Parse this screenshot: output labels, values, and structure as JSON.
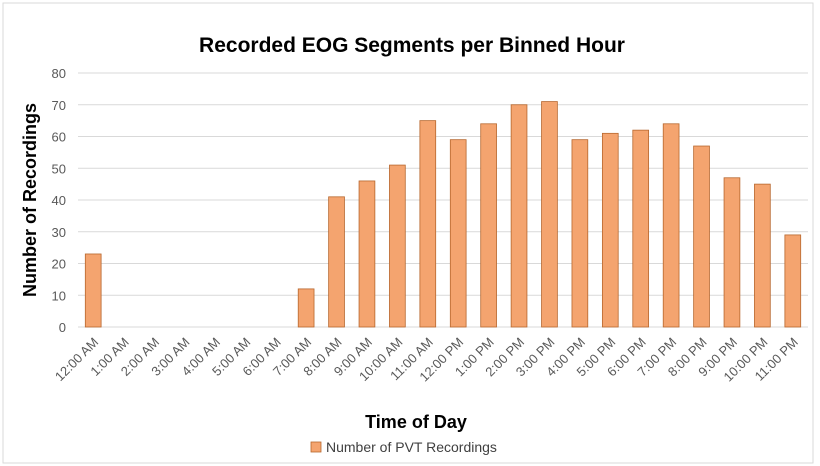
{
  "chart_data": {
    "type": "bar",
    "title": "Recorded EOG Segments per Binned Hour",
    "xlabel": "Time of Day",
    "ylabel": "Number of Recordings",
    "ylim": [
      0,
      80
    ],
    "yticks": [
      0,
      10,
      20,
      30,
      40,
      50,
      60,
      70,
      80
    ],
    "grid": true,
    "legend_position": "bottom",
    "categories": [
      "12:00 AM",
      "1:00 AM",
      "2:00 AM",
      "3:00 AM",
      "4:00 AM",
      "5:00 AM",
      "6:00 AM",
      "7:00 AM",
      "8:00 AM",
      "9:00 AM",
      "10:00 AM",
      "11:00 AM",
      "12:00 PM",
      "1:00 PM",
      "2:00 PM",
      "3:00 PM",
      "4:00 PM",
      "5:00 PM",
      "6:00 PM",
      "7:00 PM",
      "8:00 PM",
      "9:00 PM",
      "10:00 PM",
      "11:00 PM"
    ],
    "series": [
      {
        "name": "Number of PVT Recordings",
        "color": "#f4a46f",
        "values": [
          23,
          0,
          0,
          0,
          0,
          0,
          0,
          12,
          41,
          46,
          51,
          65,
          59,
          64,
          70,
          71,
          59,
          61,
          62,
          64,
          57,
          47,
          45,
          29
        ]
      }
    ]
  }
}
